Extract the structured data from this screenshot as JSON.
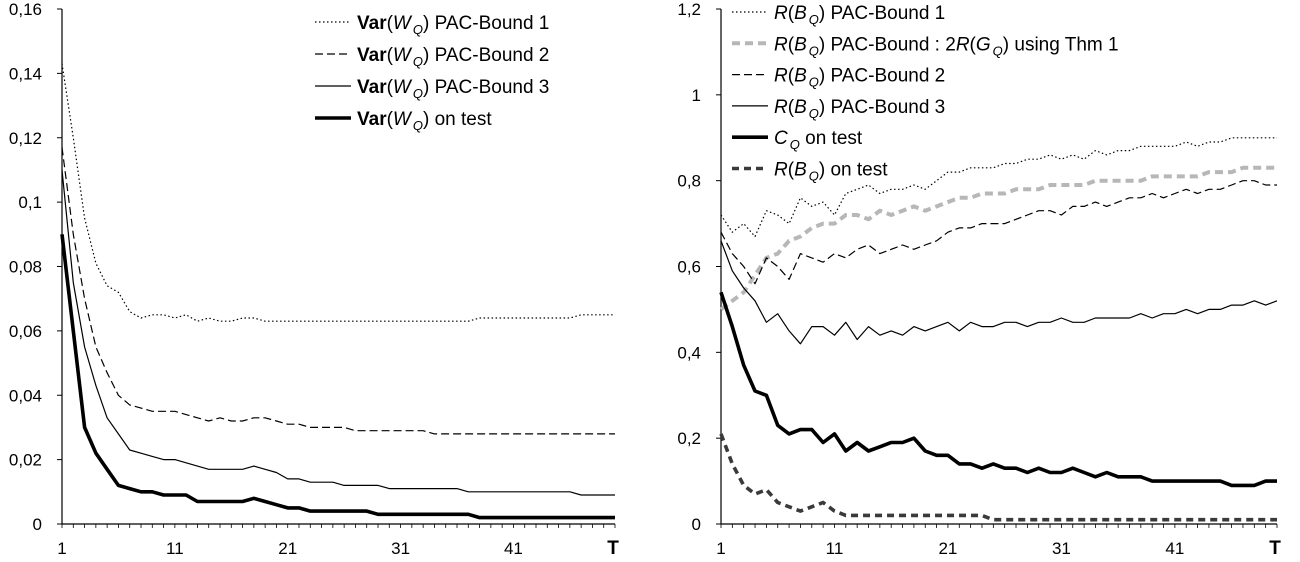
{
  "chart_data": [
    {
      "type": "line",
      "title": "",
      "xlabel": "T",
      "ylabel": "",
      "xlim": [
        1,
        50
      ],
      "ylim": [
        0,
        0.16
      ],
      "x_ticks": [
        "1",
        "11",
        "21",
        "31",
        "41"
      ],
      "y_ticks": [
        "0",
        "0,02",
        "0,04",
        "0,06",
        "0,08",
        "0,1",
        "0,12",
        "0,14",
        "0,16"
      ],
      "legend_position": "top-right",
      "series": [
        {
          "name": "Var(W_Q) PAC-Bound 1",
          "legend": {
            "bold": "Var",
            "open": "(",
            "ital": "W",
            "sub": "Q",
            "rest": ") PAC-Bound 1"
          },
          "style": "dotted",
          "values": [
            0.143,
            0.12,
            0.095,
            0.081,
            0.074,
            0.072,
            0.066,
            0.064,
            0.065,
            0.065,
            0.064,
            0.065,
            0.063,
            0.064,
            0.063,
            0.063,
            0.064,
            0.064,
            0.063,
            0.063,
            0.063,
            0.063,
            0.063,
            0.063,
            0.063,
            0.063,
            0.063,
            0.063,
            0.063,
            0.063,
            0.063,
            0.063,
            0.063,
            0.063,
            0.063,
            0.063,
            0.063,
            0.064,
            0.064,
            0.064,
            0.064,
            0.064,
            0.064,
            0.064,
            0.064,
            0.064,
            0.065,
            0.065,
            0.065,
            0.065
          ]
        },
        {
          "name": "Var(W_Q) PAC-Bound 2",
          "legend": {
            "bold": "Var",
            "open": "(",
            "ital": "W",
            "sub": "Q",
            "rest": ") PAC-Bound 2"
          },
          "style": "dashed",
          "values": [
            0.117,
            0.09,
            0.07,
            0.055,
            0.047,
            0.04,
            0.037,
            0.036,
            0.035,
            0.035,
            0.035,
            0.034,
            0.033,
            0.032,
            0.033,
            0.032,
            0.032,
            0.033,
            0.033,
            0.032,
            0.031,
            0.031,
            0.03,
            0.03,
            0.03,
            0.03,
            0.029,
            0.029,
            0.029,
            0.029,
            0.029,
            0.029,
            0.029,
            0.028,
            0.028,
            0.028,
            0.028,
            0.028,
            0.028,
            0.028,
            0.028,
            0.028,
            0.028,
            0.028,
            0.028,
            0.028,
            0.028,
            0.028,
            0.028,
            0.028
          ]
        },
        {
          "name": "Var(W_Q) PAC-Bound 3",
          "legend": {
            "bold": "Var",
            "open": "(",
            "ital": "W",
            "sub": "Q",
            "rest": ") PAC-Bound 3"
          },
          "style": "solid",
          "values": [
            0.11,
            0.075,
            0.055,
            0.043,
            0.033,
            0.028,
            0.023,
            0.022,
            0.021,
            0.02,
            0.02,
            0.019,
            0.018,
            0.017,
            0.017,
            0.017,
            0.017,
            0.018,
            0.017,
            0.016,
            0.014,
            0.014,
            0.013,
            0.013,
            0.013,
            0.012,
            0.012,
            0.012,
            0.012,
            0.011,
            0.011,
            0.011,
            0.011,
            0.011,
            0.011,
            0.011,
            0.01,
            0.01,
            0.01,
            0.01,
            0.01,
            0.01,
            0.01,
            0.01,
            0.01,
            0.01,
            0.009,
            0.009,
            0.009,
            0.009
          ]
        },
        {
          "name": "Var(W_Q) on test",
          "legend": {
            "bold": "Var",
            "open": "(",
            "ital": "W",
            "sub": "Q",
            "rest": ") on test"
          },
          "style": "bold",
          "values": [
            0.09,
            0.06,
            0.03,
            0.022,
            0.017,
            0.012,
            0.011,
            0.01,
            0.01,
            0.009,
            0.009,
            0.009,
            0.007,
            0.007,
            0.007,
            0.007,
            0.007,
            0.008,
            0.007,
            0.006,
            0.005,
            0.005,
            0.004,
            0.004,
            0.004,
            0.004,
            0.004,
            0.004,
            0.003,
            0.003,
            0.003,
            0.003,
            0.003,
            0.003,
            0.003,
            0.003,
            0.003,
            0.002,
            0.002,
            0.002,
            0.002,
            0.002,
            0.002,
            0.002,
            0.002,
            0.002,
            0.002,
            0.002,
            0.002,
            0.002
          ]
        }
      ]
    },
    {
      "type": "line",
      "title": "",
      "xlabel": "T",
      "ylabel": "",
      "xlim": [
        1,
        50
      ],
      "ylim": [
        0,
        1.2
      ],
      "x_ticks": [
        "1",
        "11",
        "21",
        "31",
        "41"
      ],
      "y_ticks": [
        "0",
        "0,2",
        "0,4",
        "0,6",
        "0,8",
        "1",
        "1,2"
      ],
      "legend_position": "top-left",
      "series": [
        {
          "name": "R(B_Q) PAC-Bound 1",
          "legend": {
            "ital": "R",
            "open": "(",
            "ital2": "B",
            "sub": "Q",
            "rest": ") PAC-Bound 1"
          },
          "style": "dotted",
          "values": [
            0.72,
            0.68,
            0.7,
            0.67,
            0.73,
            0.72,
            0.7,
            0.76,
            0.74,
            0.75,
            0.72,
            0.77,
            0.78,
            0.79,
            0.77,
            0.78,
            0.78,
            0.79,
            0.78,
            0.8,
            0.82,
            0.82,
            0.83,
            0.83,
            0.83,
            0.84,
            0.84,
            0.85,
            0.85,
            0.86,
            0.85,
            0.86,
            0.85,
            0.87,
            0.86,
            0.87,
            0.87,
            0.88,
            0.88,
            0.88,
            0.88,
            0.89,
            0.88,
            0.89,
            0.89,
            0.9,
            0.9,
            0.9,
            0.9,
            0.9
          ]
        },
        {
          "name": "R(B_Q) PAC-Bound : 2R(G_Q) using Thm 1",
          "legend": {
            "ital": "R",
            "open": "(",
            "ital2": "B",
            "sub": "Q",
            "rest": ") PAC-Bound : 2",
            "ital3": "R",
            "open2": "(",
            "ital4": "G",
            "sub2": "Q",
            "rest2": ") using Thm 1"
          },
          "style": "gray-dashed",
          "values": [
            0.5,
            0.52,
            0.54,
            0.58,
            0.62,
            0.63,
            0.66,
            0.67,
            0.69,
            0.7,
            0.7,
            0.72,
            0.72,
            0.71,
            0.73,
            0.72,
            0.73,
            0.74,
            0.73,
            0.74,
            0.75,
            0.76,
            0.76,
            0.77,
            0.77,
            0.77,
            0.78,
            0.78,
            0.78,
            0.79,
            0.79,
            0.79,
            0.79,
            0.8,
            0.8,
            0.8,
            0.8,
            0.8,
            0.81,
            0.81,
            0.81,
            0.81,
            0.81,
            0.82,
            0.82,
            0.82,
            0.83,
            0.83,
            0.83,
            0.83
          ]
        },
        {
          "name": "R(B_Q) PAC-Bound 2",
          "legend": {
            "ital": "R",
            "open": "(",
            "ital2": "B",
            "sub": "Q",
            "rest": ")  PAC-Bound 2"
          },
          "style": "dashed",
          "values": [
            0.68,
            0.63,
            0.6,
            0.56,
            0.62,
            0.6,
            0.57,
            0.63,
            0.62,
            0.61,
            0.63,
            0.62,
            0.64,
            0.65,
            0.63,
            0.64,
            0.65,
            0.64,
            0.65,
            0.66,
            0.68,
            0.69,
            0.69,
            0.7,
            0.7,
            0.7,
            0.71,
            0.72,
            0.73,
            0.73,
            0.72,
            0.74,
            0.74,
            0.75,
            0.74,
            0.75,
            0.76,
            0.76,
            0.77,
            0.76,
            0.77,
            0.78,
            0.77,
            0.78,
            0.78,
            0.79,
            0.8,
            0.8,
            0.79,
            0.79
          ]
        },
        {
          "name": "R(B_Q) PAC-Bound 3",
          "legend": {
            "ital": "R",
            "open": "(",
            "ital2": "B",
            "sub": "Q",
            "rest": ")  PAC-Bound 3"
          },
          "style": "solid",
          "values": [
            0.66,
            0.59,
            0.55,
            0.52,
            0.47,
            0.49,
            0.45,
            0.42,
            0.46,
            0.46,
            0.44,
            0.47,
            0.43,
            0.46,
            0.44,
            0.45,
            0.44,
            0.46,
            0.45,
            0.46,
            0.47,
            0.45,
            0.47,
            0.46,
            0.46,
            0.47,
            0.47,
            0.46,
            0.47,
            0.47,
            0.48,
            0.47,
            0.47,
            0.48,
            0.48,
            0.48,
            0.48,
            0.49,
            0.48,
            0.49,
            0.49,
            0.5,
            0.49,
            0.5,
            0.5,
            0.51,
            0.51,
            0.52,
            0.51,
            0.52
          ]
        },
        {
          "name": "C_Q on test",
          "legend": {
            "ital": "C",
            "sub": "Q",
            "rest": " on test"
          },
          "style": "bold",
          "values": [
            0.54,
            0.46,
            0.37,
            0.31,
            0.3,
            0.23,
            0.21,
            0.22,
            0.22,
            0.19,
            0.21,
            0.17,
            0.19,
            0.17,
            0.18,
            0.19,
            0.19,
            0.2,
            0.17,
            0.16,
            0.16,
            0.14,
            0.14,
            0.13,
            0.14,
            0.13,
            0.13,
            0.12,
            0.13,
            0.12,
            0.12,
            0.13,
            0.12,
            0.11,
            0.12,
            0.11,
            0.11,
            0.11,
            0.1,
            0.1,
            0.1,
            0.1,
            0.1,
            0.1,
            0.1,
            0.09,
            0.09,
            0.09,
            0.1,
            0.1
          ]
        },
        {
          "name": "R(B_Q) on test",
          "legend": {
            "ital": "R",
            "open": "(",
            "ital2": "B",
            "sub": "Q",
            "rest": ")  on test"
          },
          "style": "bold-dashed",
          "values": [
            0.21,
            0.14,
            0.09,
            0.07,
            0.08,
            0.05,
            0.04,
            0.03,
            0.04,
            0.05,
            0.03,
            0.02,
            0.02,
            0.02,
            0.02,
            0.02,
            0.02,
            0.02,
            0.02,
            0.02,
            0.02,
            0.02,
            0.02,
            0.02,
            0.01,
            0.01,
            0.01,
            0.01,
            0.01,
            0.01,
            0.01,
            0.01,
            0.01,
            0.01,
            0.01,
            0.01,
            0.01,
            0.01,
            0.01,
            0.01,
            0.01,
            0.01,
            0.01,
            0.01,
            0.01,
            0.01,
            0.01,
            0.01,
            0.01,
            0.01
          ]
        }
      ]
    }
  ]
}
